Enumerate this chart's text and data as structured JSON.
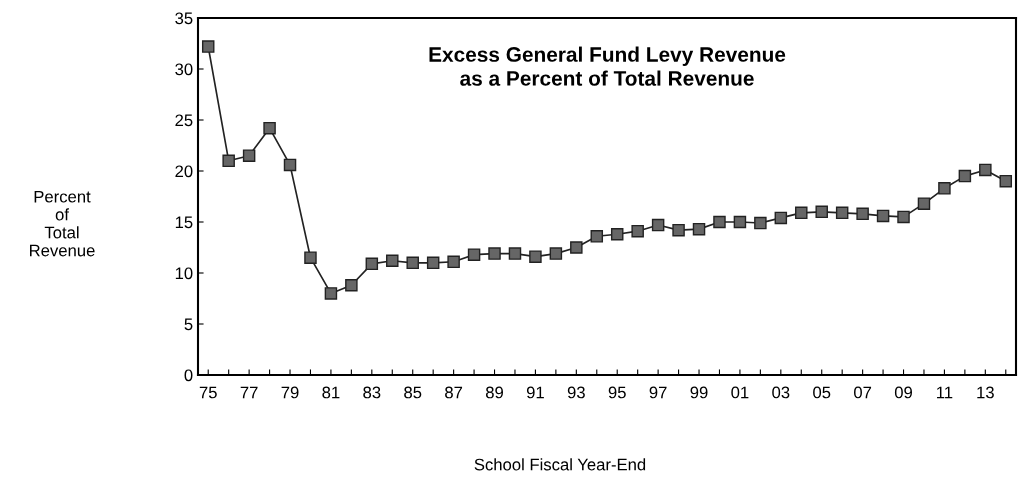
{
  "chart_data": {
    "type": "line",
    "title": "Excess General Fund Levy Revenue\nas a Percent of Total Revenue",
    "xlabel": "School Fiscal Year-End",
    "ylabel": "Percent\nof\nTotal\nRevenue",
    "categories": [
      "75",
      null,
      "77",
      null,
      "79",
      null,
      "81",
      null,
      "83",
      null,
      "85",
      null,
      "87",
      null,
      "89",
      null,
      "91",
      null,
      "93",
      null,
      "95",
      null,
      "97",
      null,
      "99",
      null,
      "01",
      null,
      "03",
      null,
      "05",
      null,
      "07",
      null,
      "09",
      null,
      "11",
      null,
      "13",
      null
    ],
    "series": [
      {
        "color": "#666666",
        "values": [
          32.2,
          21,
          21.5,
          24.2,
          20.6,
          11.5,
          8,
          8.8,
          10.9,
          11.2,
          11,
          11,
          11.1,
          11.8,
          11.9,
          11.9,
          11.6,
          11.9,
          12.5,
          13.6,
          13.8,
          14.1,
          14.7,
          14.2,
          14.3,
          15,
          15,
          14.9,
          15.4,
          15.9,
          16,
          15.9,
          15.8,
          15.6,
          15.5,
          16.8,
          18.3,
          19.5,
          20.1,
          19
        ]
      }
    ],
    "ylim": [
      0,
      35
    ],
    "yticks": [
      0,
      5,
      10,
      15,
      20,
      25,
      30,
      35
    ],
    "grid": false,
    "legend": false,
    "marker": "square",
    "line_style": "solid"
  }
}
